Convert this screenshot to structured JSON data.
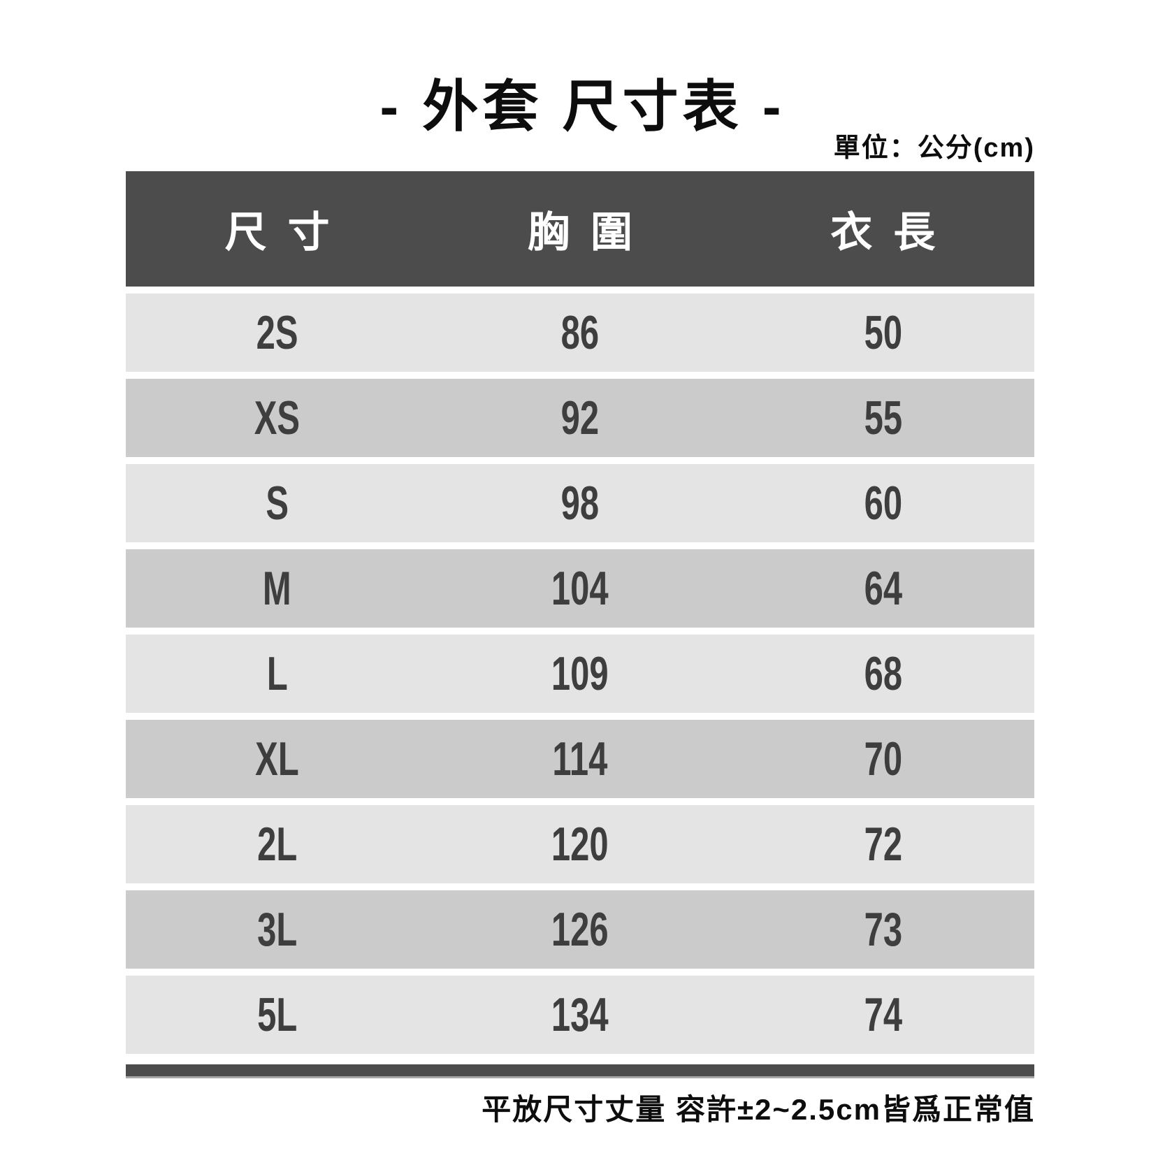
{
  "page": {
    "unit_note": "單位：公分(cm)"
  },
  "chart_data": {
    "type": "table",
    "title": "- 外套 尺寸表 -",
    "unit": "公分(cm)",
    "columns": [
      "尺寸",
      "胸圍",
      "衣長"
    ],
    "rows": [
      {
        "size": "2S",
        "chest": 86,
        "length": 50
      },
      {
        "size": "XS",
        "chest": 92,
        "length": 55
      },
      {
        "size": "S",
        "chest": 98,
        "length": 60
      },
      {
        "size": "M",
        "chest": 104,
        "length": 64
      },
      {
        "size": "L",
        "chest": 109,
        "length": 68
      },
      {
        "size": "XL",
        "chest": 114,
        "length": 70
      },
      {
        "size": "2L",
        "chest": 120,
        "length": 72
      },
      {
        "size": "3L",
        "chest": 126,
        "length": 73
      },
      {
        "size": "5L",
        "chest": 134,
        "length": 74
      }
    ],
    "note": "平放尺寸丈量 容許±2~2.5cm皆爲正常值"
  },
  "colors": {
    "header_bg": "#4c4c4c",
    "header_text": "#ffffff",
    "row_light_bg": "#e4e4e4",
    "row_dark_bg": "#cbcbcb",
    "row_text": "#3e3e3e",
    "bottom_bar": "#4c4c4c",
    "bar_shadow": "#a6a6a6",
    "title_text": "#0d0d0d"
  }
}
